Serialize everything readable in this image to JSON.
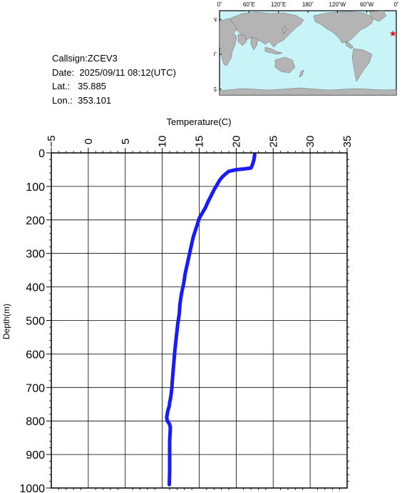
{
  "info": {
    "callsign_label": "Callsign:",
    "callsign": "ZCEV3",
    "date_label": "Date:",
    "date": "2025/09/11 08:12(UTC)",
    "lat_label": "Lat.:",
    "lat": "35.885",
    "lon_label": "Lon.:",
    "lon": "353.101"
  },
  "map": {
    "top_lon_labels": [
      "0˚",
      "60˚E",
      "120˚E",
      "180˚",
      "120˚W",
      "60˚W",
      "0˚"
    ],
    "lat_labels": [
      "60˚N",
      "0˚",
      "60˚S"
    ],
    "ocean_color": "#c8f4f8",
    "land_color": "#b4b4b4",
    "marker_color": "#ff0000",
    "station_marker": "star-icon"
  },
  "chart_data": {
    "type": "line",
    "xlabel": "Temperature(C)",
    "ylabel": "Depth(m)",
    "xlim": [
      -5,
      35
    ],
    "ylim": [
      0,
      1000
    ],
    "x_ticks": [
      -5,
      0,
      5,
      10,
      15,
      20,
      25,
      30,
      35
    ],
    "y_ticks": [
      0,
      100,
      200,
      300,
      400,
      500,
      600,
      700,
      800,
      900,
      1000
    ],
    "y_inverted": true,
    "grid": true,
    "line_color": "#1a1aff",
    "series": [
      {
        "x": [
          22.5,
          22.4,
          22.2,
          22.0,
          21.0,
          20.0,
          19.0,
          18.6,
          18.2,
          17.8,
          17.4,
          17.0,
          16.6,
          16.2,
          16.0,
          15.8,
          15.4,
          15.0,
          14.8,
          14.5,
          14.2,
          14.0,
          13.7,
          13.4,
          13.1,
          12.9,
          12.6,
          12.4,
          12.3,
          12.1,
          11.9,
          11.7,
          11.55,
          11.4,
          11.3,
          11.2,
          11.1,
          11.0,
          10.95,
          10.75,
          10.6,
          10.7,
          11.0,
          11.1,
          11.05,
          11.0,
          11.0,
          11.0,
          10.95
        ],
        "y": [
          5,
          20,
          35,
          45,
          48,
          50,
          55,
          62,
          70,
          80,
          95,
          110,
          128,
          145,
          155,
          165,
          180,
          195,
          210,
          230,
          250,
          270,
          300,
          330,
          360,
          390,
          420,
          450,
          480,
          510,
          550,
          590,
          630,
          670,
          700,
          720,
          735,
          745,
          755,
          770,
          790,
          800,
          810,
          820,
          840,
          860,
          900,
          950,
          990
        ]
      }
    ]
  }
}
